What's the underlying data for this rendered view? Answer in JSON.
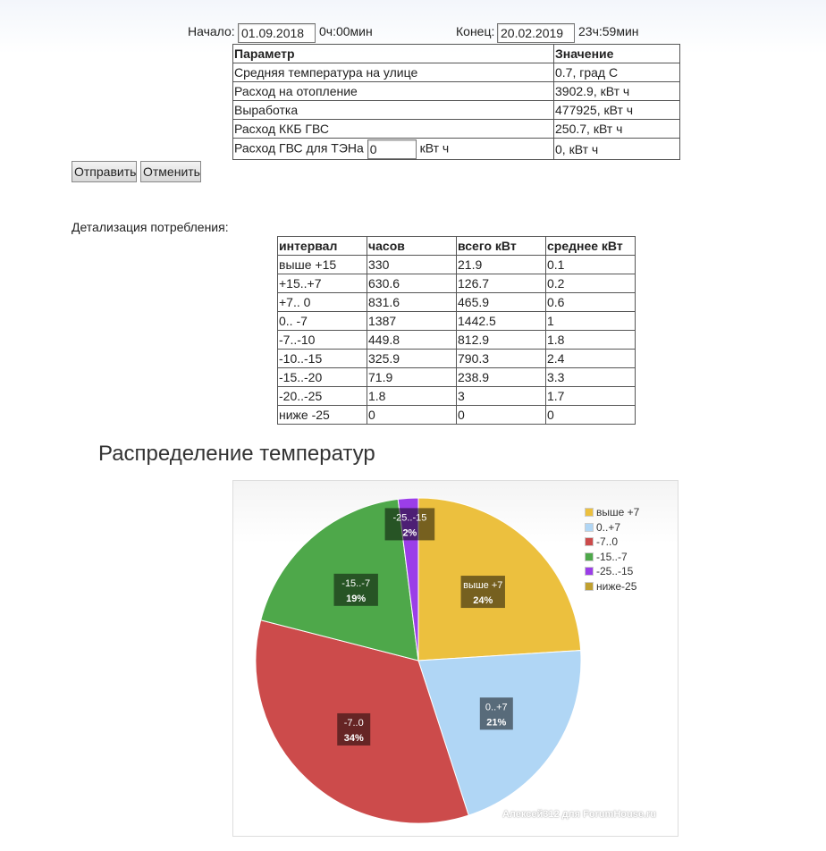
{
  "period": {
    "start_label": "Начало:",
    "start_date": "01.09.2018",
    "start_time": "0ч:00мин",
    "end_label": "Конец:",
    "end_date": "20.02.2019",
    "end_time": "23ч:59мин"
  },
  "params_table": {
    "headers": [
      "Параметр",
      "Значение"
    ],
    "rows": [
      {
        "param": "Средняя температура на улице",
        "value": "0.7, град С"
      },
      {
        "param": "Расход на отопление",
        "value": "3902.9, кВт ч"
      },
      {
        "param": "Выработка",
        "value": "477925, кВт ч"
      },
      {
        "param": "Расход ККБ ГВС",
        "value": "250.7, кВт ч"
      }
    ],
    "gvs_row": {
      "param": "Расход ГВС для ТЭНа",
      "input_value": "0",
      "unit": "кВт ч",
      "value": "0, кВт ч"
    }
  },
  "buttons": {
    "send": "Отправить",
    "cancel": "Отменить"
  },
  "detail": {
    "title": "Детализация потребления:",
    "headers": [
      "интервал",
      "часов",
      "всего кВт",
      "среднее кВт"
    ],
    "rows": [
      [
        "выше +15",
        "330",
        "21.9",
        "0.1"
      ],
      [
        "+15..+7",
        "630.6",
        "126.7",
        "0.2"
      ],
      [
        "+7.. 0",
        "831.6",
        "465.9",
        "0.6"
      ],
      [
        "0.. -7",
        "1387",
        "1442.5",
        "1"
      ],
      [
        "-7..-10",
        "449.8",
        "812.9",
        "1.8"
      ],
      [
        "-10..-15",
        "325.9",
        "790.3",
        "2.4"
      ],
      [
        "-15..-20",
        "71.9",
        "238.9",
        "3.3"
      ],
      [
        "-20..-25",
        "1.8",
        "3",
        "1.7"
      ],
      [
        "ниже -25",
        "0",
        "0",
        "0"
      ]
    ]
  },
  "chart_data": {
    "type": "pie",
    "title": "Распределение температур",
    "slices": [
      {
        "label": "выше +7",
        "value": 24,
        "pct_label": "24%",
        "color": "#ecc03e"
      },
      {
        "label": "0..+7",
        "value": 21,
        "pct_label": "21%",
        "color": "#b0d6f5"
      },
      {
        "label": "-7..0",
        "value": 34,
        "pct_label": "34%",
        "color": "#cc4b4b"
      },
      {
        "label": "-15..-7",
        "value": 19,
        "pct_label": "19%",
        "color": "#4ea84a"
      },
      {
        "label": "-25..-15",
        "value": 2,
        "pct_label": "2%",
        "color": "#9b3ee8"
      }
    ],
    "legend": [
      {
        "label": "выше +7",
        "color": "#ecc03e"
      },
      {
        "label": "0..+7",
        "color": "#b0d6f5"
      },
      {
        "label": "-7..0",
        "color": "#cc4b4b"
      },
      {
        "label": "-15..-7",
        "color": "#4ea84a"
      },
      {
        "label": "-25..-15",
        "color": "#9b3ee8"
      },
      {
        "label": "ниже-25",
        "color": "#c0a030"
      }
    ],
    "slice_data_labels": [
      "выше +7",
      "0..+7",
      "-7..0",
      "-15..-7",
      "-25..-15"
    ],
    "legend_position": "top-right"
  },
  "watermark": "Алексей312 для ForumHouse.ru"
}
